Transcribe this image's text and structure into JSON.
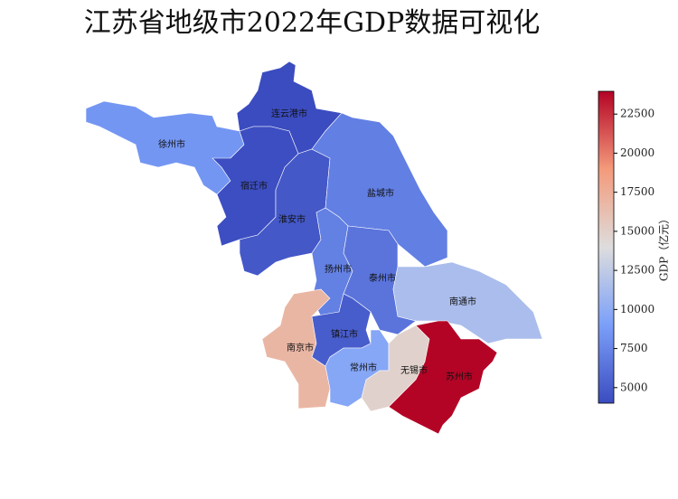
{
  "chart_data": {
    "type": "choropleth",
    "title": "江苏省地级市2022年GDP数据可视化",
    "regions": [
      {
        "name": "徐州市",
        "value": 8458
      },
      {
        "name": "连云港市",
        "value": 4005
      },
      {
        "name": "宿迁市",
        "value": 4112
      },
      {
        "name": "淮安市",
        "value": 4742
      },
      {
        "name": "盐城市",
        "value": 7080
      },
      {
        "name": "扬州市",
        "value": 7105
      },
      {
        "name": "泰州市",
        "value": 6402
      },
      {
        "name": "南通市",
        "value": 11380
      },
      {
        "name": "南京市",
        "value": 16907
      },
      {
        "name": "镇江市",
        "value": 5017
      },
      {
        "name": "常州市",
        "value": 9550
      },
      {
        "name": "无锡市",
        "value": 14850
      },
      {
        "name": "苏州市",
        "value": 23958
      }
    ],
    "colorbar": {
      "label": "GDP（亿元）",
      "cmap": "coolwarm",
      "lim": [
        4005,
        23958
      ],
      "ticks": [
        5000,
        7500,
        10000,
        12500,
        15000,
        17500,
        20000,
        22500
      ]
    }
  }
}
